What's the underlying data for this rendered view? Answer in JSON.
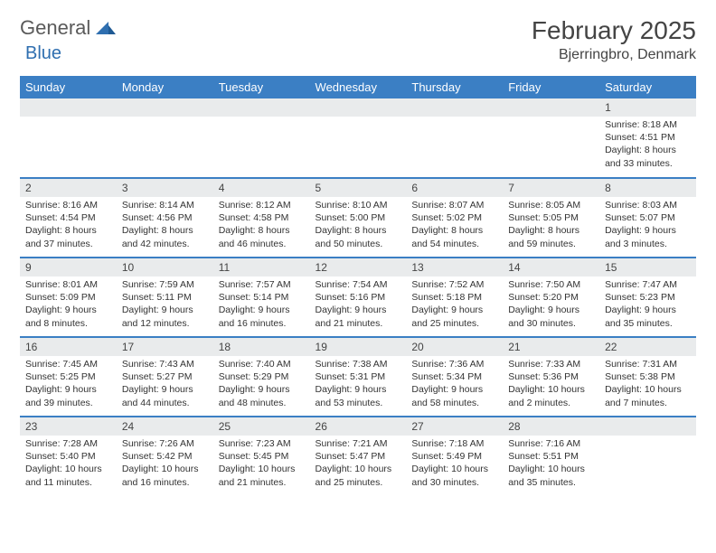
{
  "logo": {
    "text1": "General",
    "text2": "Blue"
  },
  "header": {
    "title": "February 2025",
    "location": "Bjerringbro, Denmark"
  },
  "colors": {
    "header_bg": "#3b7fc4",
    "header_text": "#ffffff",
    "day_bar_bg": "#e9ebec",
    "border": "#3b7fc4",
    "text": "#333333",
    "logo_gray": "#5a5a5a",
    "logo_blue": "#2f6fb0"
  },
  "fonts": {
    "title_size": 28,
    "location_size": 16,
    "header_size": 13,
    "daynum_size": 12,
    "body_size": 10.5
  },
  "calendar": {
    "type": "table",
    "days_of_week": [
      "Sunday",
      "Monday",
      "Tuesday",
      "Wednesday",
      "Thursday",
      "Friday",
      "Saturday"
    ],
    "weeks": [
      [
        {
          "day": "",
          "sunrise": "",
          "sunset": "",
          "daylight": ""
        },
        {
          "day": "",
          "sunrise": "",
          "sunset": "",
          "daylight": ""
        },
        {
          "day": "",
          "sunrise": "",
          "sunset": "",
          "daylight": ""
        },
        {
          "day": "",
          "sunrise": "",
          "sunset": "",
          "daylight": ""
        },
        {
          "day": "",
          "sunrise": "",
          "sunset": "",
          "daylight": ""
        },
        {
          "day": "",
          "sunrise": "",
          "sunset": "",
          "daylight": ""
        },
        {
          "day": "1",
          "sunrise": "Sunrise: 8:18 AM",
          "sunset": "Sunset: 4:51 PM",
          "daylight": "Daylight: 8 hours and 33 minutes."
        }
      ],
      [
        {
          "day": "2",
          "sunrise": "Sunrise: 8:16 AM",
          "sunset": "Sunset: 4:54 PM",
          "daylight": "Daylight: 8 hours and 37 minutes."
        },
        {
          "day": "3",
          "sunrise": "Sunrise: 8:14 AM",
          "sunset": "Sunset: 4:56 PM",
          "daylight": "Daylight: 8 hours and 42 minutes."
        },
        {
          "day": "4",
          "sunrise": "Sunrise: 8:12 AM",
          "sunset": "Sunset: 4:58 PM",
          "daylight": "Daylight: 8 hours and 46 minutes."
        },
        {
          "day": "5",
          "sunrise": "Sunrise: 8:10 AM",
          "sunset": "Sunset: 5:00 PM",
          "daylight": "Daylight: 8 hours and 50 minutes."
        },
        {
          "day": "6",
          "sunrise": "Sunrise: 8:07 AM",
          "sunset": "Sunset: 5:02 PM",
          "daylight": "Daylight: 8 hours and 54 minutes."
        },
        {
          "day": "7",
          "sunrise": "Sunrise: 8:05 AM",
          "sunset": "Sunset: 5:05 PM",
          "daylight": "Daylight: 8 hours and 59 minutes."
        },
        {
          "day": "8",
          "sunrise": "Sunrise: 8:03 AM",
          "sunset": "Sunset: 5:07 PM",
          "daylight": "Daylight: 9 hours and 3 minutes."
        }
      ],
      [
        {
          "day": "9",
          "sunrise": "Sunrise: 8:01 AM",
          "sunset": "Sunset: 5:09 PM",
          "daylight": "Daylight: 9 hours and 8 minutes."
        },
        {
          "day": "10",
          "sunrise": "Sunrise: 7:59 AM",
          "sunset": "Sunset: 5:11 PM",
          "daylight": "Daylight: 9 hours and 12 minutes."
        },
        {
          "day": "11",
          "sunrise": "Sunrise: 7:57 AM",
          "sunset": "Sunset: 5:14 PM",
          "daylight": "Daylight: 9 hours and 16 minutes."
        },
        {
          "day": "12",
          "sunrise": "Sunrise: 7:54 AM",
          "sunset": "Sunset: 5:16 PM",
          "daylight": "Daylight: 9 hours and 21 minutes."
        },
        {
          "day": "13",
          "sunrise": "Sunrise: 7:52 AM",
          "sunset": "Sunset: 5:18 PM",
          "daylight": "Daylight: 9 hours and 25 minutes."
        },
        {
          "day": "14",
          "sunrise": "Sunrise: 7:50 AM",
          "sunset": "Sunset: 5:20 PM",
          "daylight": "Daylight: 9 hours and 30 minutes."
        },
        {
          "day": "15",
          "sunrise": "Sunrise: 7:47 AM",
          "sunset": "Sunset: 5:23 PM",
          "daylight": "Daylight: 9 hours and 35 minutes."
        }
      ],
      [
        {
          "day": "16",
          "sunrise": "Sunrise: 7:45 AM",
          "sunset": "Sunset: 5:25 PM",
          "daylight": "Daylight: 9 hours and 39 minutes."
        },
        {
          "day": "17",
          "sunrise": "Sunrise: 7:43 AM",
          "sunset": "Sunset: 5:27 PM",
          "daylight": "Daylight: 9 hours and 44 minutes."
        },
        {
          "day": "18",
          "sunrise": "Sunrise: 7:40 AM",
          "sunset": "Sunset: 5:29 PM",
          "daylight": "Daylight: 9 hours and 48 minutes."
        },
        {
          "day": "19",
          "sunrise": "Sunrise: 7:38 AM",
          "sunset": "Sunset: 5:31 PM",
          "daylight": "Daylight: 9 hours and 53 minutes."
        },
        {
          "day": "20",
          "sunrise": "Sunrise: 7:36 AM",
          "sunset": "Sunset: 5:34 PM",
          "daylight": "Daylight: 9 hours and 58 minutes."
        },
        {
          "day": "21",
          "sunrise": "Sunrise: 7:33 AM",
          "sunset": "Sunset: 5:36 PM",
          "daylight": "Daylight: 10 hours and 2 minutes."
        },
        {
          "day": "22",
          "sunrise": "Sunrise: 7:31 AM",
          "sunset": "Sunset: 5:38 PM",
          "daylight": "Daylight: 10 hours and 7 minutes."
        }
      ],
      [
        {
          "day": "23",
          "sunrise": "Sunrise: 7:28 AM",
          "sunset": "Sunset: 5:40 PM",
          "daylight": "Daylight: 10 hours and 11 minutes."
        },
        {
          "day": "24",
          "sunrise": "Sunrise: 7:26 AM",
          "sunset": "Sunset: 5:42 PM",
          "daylight": "Daylight: 10 hours and 16 minutes."
        },
        {
          "day": "25",
          "sunrise": "Sunrise: 7:23 AM",
          "sunset": "Sunset: 5:45 PM",
          "daylight": "Daylight: 10 hours and 21 minutes."
        },
        {
          "day": "26",
          "sunrise": "Sunrise: 7:21 AM",
          "sunset": "Sunset: 5:47 PM",
          "daylight": "Daylight: 10 hours and 25 minutes."
        },
        {
          "day": "27",
          "sunrise": "Sunrise: 7:18 AM",
          "sunset": "Sunset: 5:49 PM",
          "daylight": "Daylight: 10 hours and 30 minutes."
        },
        {
          "day": "28",
          "sunrise": "Sunrise: 7:16 AM",
          "sunset": "Sunset: 5:51 PM",
          "daylight": "Daylight: 10 hours and 35 minutes."
        },
        {
          "day": "",
          "sunrise": "",
          "sunset": "",
          "daylight": ""
        }
      ]
    ]
  }
}
